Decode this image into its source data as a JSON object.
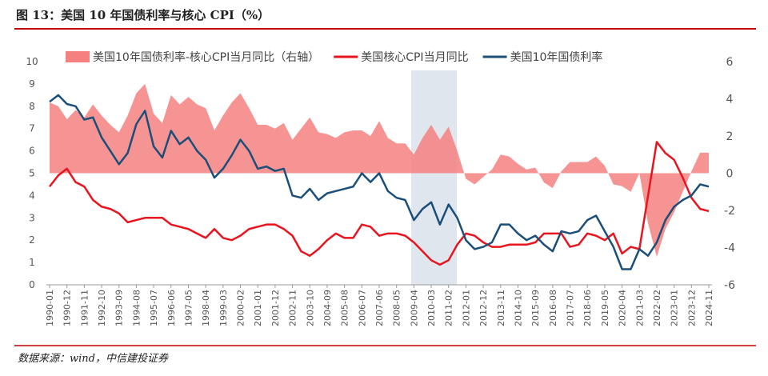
{
  "chart_data": {
    "type": "line",
    "title": "图 13：美国 10 年国债利率与核心 CPI（%）",
    "source": "数据来源：wind，中信建投证券",
    "categories": [
      "1990-01",
      null,
      "1990-12",
      null,
      "1991-11",
      null,
      "1992-10",
      null,
      "1993-09",
      null,
      "1994-08",
      null,
      "1995-07",
      null,
      "1996-06",
      null,
      "1997-05",
      null,
      "1998-04",
      null,
      "1999-03",
      null,
      "2000-02",
      null,
      "2001-01",
      null,
      "2001-12",
      null,
      "2002-11",
      null,
      "2003-10",
      null,
      "2004-09",
      null,
      "2005-08",
      null,
      "2006-07",
      null,
      "2007-06",
      null,
      "2008-05",
      null,
      "2009-04",
      null,
      "2010-03",
      null,
      "2011-02",
      null,
      "2012-01",
      null,
      "2012-12",
      null,
      "2013-11",
      null,
      "2014-10",
      null,
      "2015-09",
      null,
      "2016-08",
      null,
      "2017-07",
      null,
      "2018-06",
      null,
      "2019-05",
      null,
      "2020-04",
      null,
      "2021-03",
      null,
      "2022-02",
      null,
      "2023-01",
      null,
      "2023-12",
      null,
      "2024-11"
    ],
    "series": [
      {
        "name": "美国10年国债利率-核心CPI当月同比（右轴）",
        "color": "#f58080",
        "kind": "area",
        "axis": "y2",
        "values": [
          3.8,
          3.6,
          2.9,
          3.4,
          3.0,
          3.7,
          3.1,
          2.6,
          2.2,
          3.1,
          4.3,
          4.8,
          3.2,
          2.7,
          4.2,
          3.7,
          4.1,
          3.7,
          3.5,
          2.3,
          3.1,
          3.8,
          4.3,
          3.5,
          2.6,
          2.6,
          2.4,
          2.7,
          1.8,
          2.4,
          3.0,
          2.2,
          2.1,
          1.9,
          2.2,
          2.3,
          2.3,
          2.0,
          2.8,
          1.9,
          1.6,
          1.6,
          1.0,
          1.9,
          2.6,
          1.8,
          2.5,
          1.2,
          -0.3,
          -0.6,
          -0.2,
          0.2,
          1.0,
          0.9,
          0.5,
          0.2,
          0.3,
          -0.5,
          -0.8,
          0.1,
          0.6,
          0.6,
          0.6,
          0.9,
          0.4,
          -0.6,
          -0.7,
          -1.0,
          0.0,
          -2.7,
          -4.5,
          -3.0,
          -2.1,
          -1.0,
          0.1,
          1.1,
          1.1
        ]
      },
      {
        "name": "美国核心CPI当月同比",
        "color": "#e8141e",
        "kind": "line",
        "values": [
          4.4,
          4.9,
          5.2,
          4.6,
          4.4,
          3.8,
          3.5,
          3.4,
          3.2,
          2.8,
          2.9,
          3.0,
          3.0,
          3.0,
          2.7,
          2.6,
          2.5,
          2.3,
          2.1,
          2.5,
          2.1,
          2.0,
          2.2,
          2.5,
          2.6,
          2.7,
          2.7,
          2.5,
          2.2,
          1.5,
          1.3,
          1.6,
          2.0,
          2.3,
          2.1,
          2.1,
          2.7,
          2.6,
          2.2,
          2.3,
          2.3,
          2.2,
          1.9,
          1.5,
          1.1,
          0.9,
          1.1,
          1.8,
          2.3,
          2.2,
          1.9,
          1.7,
          1.7,
          1.8,
          1.8,
          1.8,
          1.9,
          2.3,
          2.3,
          2.3,
          1.7,
          1.8,
          2.3,
          2.2,
          2.0,
          2.3,
          1.4,
          1.7,
          1.6,
          4.0,
          6.4,
          5.9,
          5.6,
          4.8,
          3.9,
          3.4,
          3.3
        ]
      },
      {
        "name": "美国10年国债利率",
        "color": "#1b4f7a",
        "kind": "line",
        "values": [
          8.2,
          8.5,
          8.1,
          8.0,
          7.4,
          7.5,
          6.6,
          6.0,
          5.4,
          5.9,
          7.2,
          7.8,
          6.2,
          5.7,
          6.9,
          6.3,
          6.6,
          6.0,
          5.6,
          4.8,
          5.2,
          5.8,
          6.5,
          6.0,
          5.2,
          5.3,
          5.1,
          5.2,
          4.0,
          3.9,
          4.3,
          3.8,
          4.1,
          4.2,
          4.3,
          4.4,
          5.0,
          4.6,
          5.0,
          4.2,
          3.9,
          3.8,
          2.9,
          3.4,
          3.7,
          2.7,
          3.6,
          3.0,
          2.0,
          1.6,
          1.7,
          1.9,
          2.7,
          2.7,
          2.3,
          2.0,
          2.2,
          1.8,
          1.5,
          2.4,
          2.3,
          2.4,
          2.9,
          3.1,
          2.4,
          1.7,
          0.7,
          0.7,
          1.6,
          1.3,
          1.9,
          2.9,
          3.5,
          3.8,
          4.0,
          4.5,
          4.4
        ]
      }
    ],
    "ylim": [
      0,
      10
    ],
    "yticks": [
      0,
      1,
      2,
      3,
      4,
      5,
      6,
      7,
      8,
      9,
      10
    ],
    "y2lim": [
      -6,
      6
    ],
    "y2ticks": [
      -6,
      -4,
      -2,
      0,
      2,
      4,
      6
    ]
  }
}
